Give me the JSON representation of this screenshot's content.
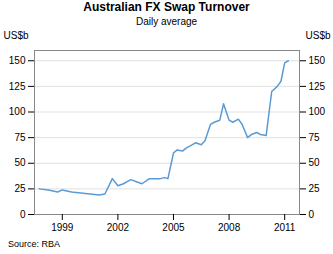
{
  "chart_data": {
    "type": "line",
    "title": "Australian FX Swap Turnover",
    "subtitle": "Daily average",
    "ylabel": "US$b",
    "y2label": "US$b",
    "source": "Source: RBA",
    "color": "#5b9bd5",
    "grid": "y",
    "xlim": [
      1997.5,
      2011.8
    ],
    "xticks": [
      1999,
      2002,
      2005,
      2008,
      2011
    ],
    "ylim": [
      0,
      160
    ],
    "yticks": [
      0,
      25,
      50,
      75,
      100,
      125,
      150
    ],
    "y2lim": [
      0,
      160
    ],
    "y2ticks": [
      0,
      25,
      50,
      75,
      100,
      125,
      150
    ],
    "x": [
      1997.75,
      1998.25,
      1998.5,
      1998.75,
      1999.0,
      1999.5,
      2000.0,
      2000.5,
      2001.0,
      2001.3,
      2001.7,
      2002.0,
      2002.3,
      2002.7,
      2003.0,
      2003.3,
      2003.7,
      2004.0,
      2004.3,
      2004.5,
      2004.7,
      2005.0,
      2005.2,
      2005.5,
      2005.7,
      2006.0,
      2006.2,
      2006.5,
      2006.7,
      2007.0,
      2007.2,
      2007.5,
      2007.7,
      2008.0,
      2008.2,
      2008.5,
      2008.7,
      2009.0,
      2009.2,
      2009.5,
      2009.7,
      2010.0,
      2010.3,
      2010.6,
      2010.8,
      2011.0,
      2011.2
    ],
    "values": [
      25,
      24,
      23,
      22,
      24,
      22,
      21,
      20,
      19,
      20,
      35,
      28,
      30,
      34,
      32,
      30,
      35,
      35,
      35,
      36,
      35,
      60,
      63,
      62,
      65,
      68,
      70,
      68,
      72,
      88,
      90,
      92,
      108,
      92,
      90,
      93,
      88,
      75,
      78,
      80,
      78,
      77,
      120,
      125,
      130,
      148,
      150
    ]
  }
}
